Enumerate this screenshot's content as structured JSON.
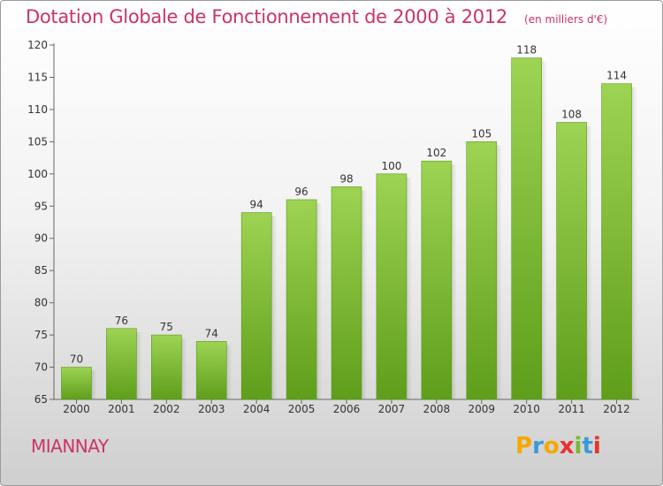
{
  "title": "Dotation Globale de Fonctionnement de 2000 à 2012",
  "unit": "(en milliers d'€)",
  "commune": "MIANNAY",
  "logo": {
    "letters": [
      "P",
      "r",
      "o",
      "x",
      "i",
      "t",
      "i"
    ],
    "colors": [
      "#f5a800",
      "#3a9ad9",
      "#f5a800",
      "#e8322d",
      "#7ab833",
      "#3a9ad9",
      "#e8322d"
    ]
  },
  "colors": {
    "bar": "#7fc436",
    "title": "#cc3366"
  },
  "chart_data": {
    "type": "bar",
    "categories": [
      "2000",
      "2001",
      "2002",
      "2003",
      "2004",
      "2005",
      "2006",
      "2007",
      "2008",
      "2009",
      "2010",
      "2011",
      "2012"
    ],
    "values": [
      70,
      76,
      75,
      74,
      94,
      96,
      98,
      100,
      102,
      105,
      118,
      108,
      114
    ],
    "ylim": [
      65,
      120
    ],
    "yticks": [
      65,
      70,
      75,
      80,
      85,
      90,
      95,
      100,
      105,
      110,
      115,
      120
    ],
    "grid": false
  }
}
